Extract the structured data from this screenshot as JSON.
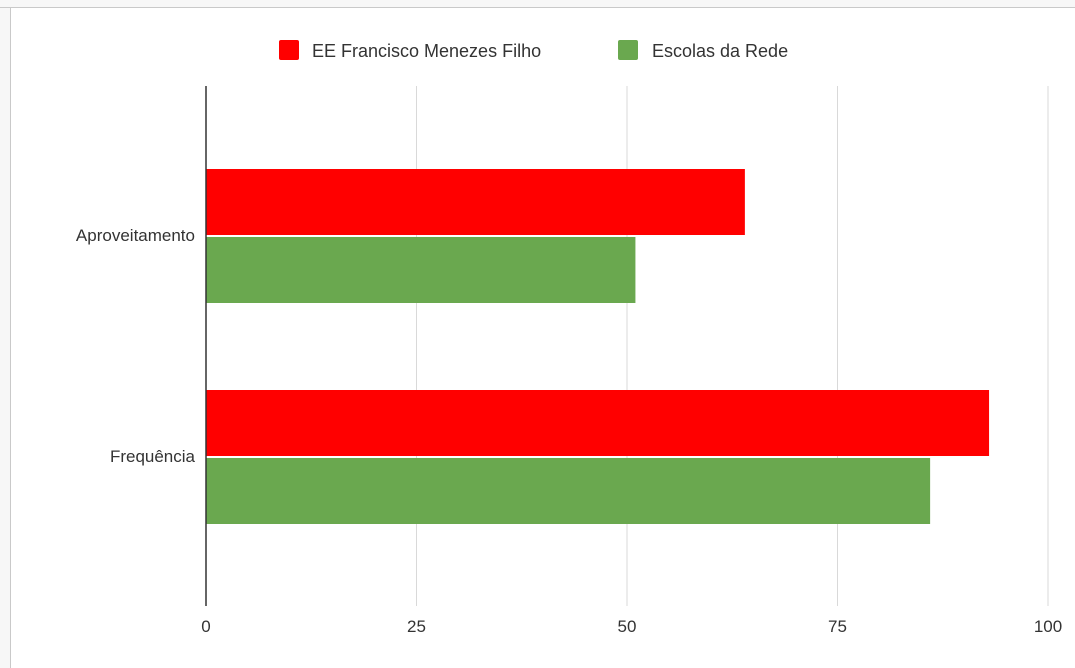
{
  "chart_data": {
    "type": "bar",
    "orientation": "horizontal",
    "categories": [
      "Aproveitamento",
      "Frequência"
    ],
    "series": [
      {
        "name": "EE Francisco Menezes Filho",
        "color": "#ff0000",
        "values": [
          64,
          93
        ]
      },
      {
        "name": "Escolas da Rede",
        "color": "#6aa84f",
        "values": [
          51,
          86
        ]
      }
    ],
    "xlim": [
      0,
      100
    ],
    "xticks": [
      0,
      25,
      50,
      75,
      100
    ],
    "xtick_labels": [
      "0",
      "25",
      "50",
      "75",
      "100"
    ],
    "grid": true,
    "legend_position": "top"
  }
}
